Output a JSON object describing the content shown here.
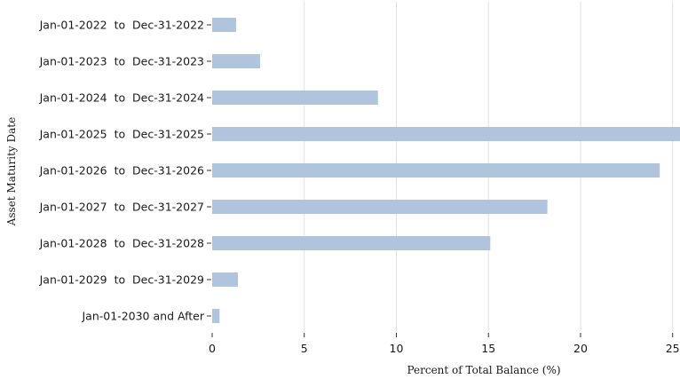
{
  "chart_data": {
    "type": "bar",
    "orientation": "horizontal",
    "title": "",
    "xlabel": "Percent of Total Balance (%)",
    "ylabel": "Asset Maturity Date",
    "categories": [
      "Jan-01-2022  to  Dec-31-2022",
      "Jan-01-2023  to  Dec-31-2023",
      "Jan-01-2024  to  Dec-31-2024",
      "Jan-01-2025  to  Dec-31-2025",
      "Jan-01-2026  to  Dec-31-2026",
      "Jan-01-2027  to  Dec-31-2027",
      "Jan-01-2028  to  Dec-31-2028",
      "Jan-01-2029  to  Dec-31-2029",
      "Jan-01-2030 and After"
    ],
    "values": [
      1.3,
      2.6,
      9.0,
      25.4,
      24.3,
      18.2,
      15.1,
      1.4,
      0.4
    ],
    "xlim": [
      0,
      25.4
    ],
    "xticks": [
      0,
      5,
      10,
      15,
      20,
      25
    ],
    "xtick_labels": [
      "0",
      "5",
      "10",
      "15",
      "20",
      "25"
    ],
    "grid": "vertical",
    "bar_color": "#b0c4de"
  }
}
